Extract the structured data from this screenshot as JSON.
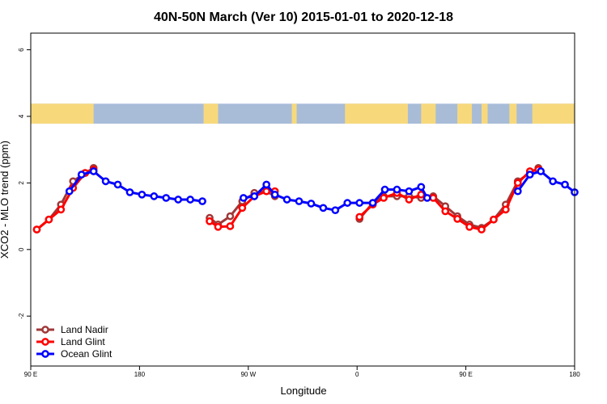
{
  "chart_data": {
    "type": "line",
    "title": "40N-50N March (Ver 10)   2015-01-01 to 2020-12-18",
    "xlabel": "Longitude",
    "ylabel": "XCO2 - MLO trend (ppm)",
    "xlim": [
      90,
      540
    ],
    "ylim": [
      -3.5,
      6.5
    ],
    "x_ticks": [
      {
        "value": 90,
        "label": "90 E"
      },
      {
        "value": 180,
        "label": "180"
      },
      {
        "value": 270,
        "label": "90 W"
      },
      {
        "value": 360,
        "label": "0"
      },
      {
        "value": 450,
        "label": "90 E"
      },
      {
        "value": 540,
        "label": "180"
      }
    ],
    "y_ticks": [
      {
        "value": -2,
        "label": "-2"
      },
      {
        "value": 0,
        "label": "0"
      },
      {
        "value": 2,
        "label": "2"
      },
      {
        "value": 4,
        "label": "4"
      },
      {
        "value": 6,
        "label": "6"
      }
    ],
    "map_strip": {
      "y_range": [
        3.78,
        4.38
      ],
      "ocean_color": "#a8bcd8",
      "land_color": "#f7d97c",
      "land_x_ranges": [
        [
          90,
          142
        ],
        [
          233,
          245
        ],
        [
          306,
          310
        ],
        [
          350,
          402
        ],
        [
          413,
          425
        ],
        [
          443,
          455
        ],
        [
          463,
          468
        ],
        [
          486,
          492
        ],
        [
          505,
          540
        ]
      ]
    },
    "legend_position": "bottom-left",
    "series": [
      {
        "name": "Land Nadir",
        "color": "#a03838",
        "segments": [
          [
            [
              95,
              0.6
            ],
            [
              105,
              0.9
            ],
            [
              115,
              1.35
            ],
            [
              125,
              2.05
            ],
            [
              135,
              2.3
            ],
            [
              142,
              2.45
            ]
          ],
          [
            [
              238,
              0.95
            ],
            [
              245,
              0.75
            ],
            [
              255,
              1.0
            ],
            [
              265,
              1.45
            ],
            [
              275,
              1.7
            ],
            [
              285,
              1.75
            ],
            [
              292,
              1.6
            ]
          ],
          [
            [
              362,
              0.92
            ],
            [
              373,
              1.4
            ],
            [
              382,
              1.6
            ],
            [
              393,
              1.6
            ],
            [
              403,
              1.6
            ],
            [
              413,
              1.55
            ],
            [
              423,
              1.6
            ],
            [
              433,
              1.3
            ],
            [
              443,
              1.0
            ],
            [
              453,
              0.75
            ],
            [
              463,
              0.65
            ],
            [
              473,
              0.9
            ],
            [
              483,
              1.35
            ],
            [
              493,
              2.05
            ],
            [
              503,
              2.3
            ],
            [
              510,
              2.45
            ]
          ]
        ]
      },
      {
        "name": "Land Glint",
        "color": "#ff0000",
        "segments": [
          [
            [
              95,
              0.6
            ],
            [
              105,
              0.9
            ],
            [
              115,
              1.2
            ],
            [
              125,
              1.85
            ],
            [
              135,
              2.3
            ],
            [
              142,
              2.4
            ]
          ],
          [
            [
              238,
              0.85
            ],
            [
              245,
              0.68
            ],
            [
              255,
              0.7
            ],
            [
              265,
              1.25
            ],
            [
              275,
              1.6
            ],
            [
              285,
              1.75
            ],
            [
              292,
              1.75
            ]
          ],
          [
            [
              362,
              0.98
            ],
            [
              373,
              1.35
            ],
            [
              382,
              1.55
            ],
            [
              393,
              1.7
            ],
            [
              403,
              1.5
            ],
            [
              413,
              1.65
            ],
            [
              423,
              1.55
            ],
            [
              433,
              1.15
            ],
            [
              443,
              0.92
            ],
            [
              453,
              0.68
            ],
            [
              463,
              0.6
            ],
            [
              473,
              0.9
            ],
            [
              483,
              1.2
            ],
            [
              493,
              2.0
            ],
            [
              503,
              2.35
            ],
            [
              510,
              2.4
            ]
          ]
        ]
      },
      {
        "name": "Ocean Glint",
        "color": "#0000ff",
        "segments": [
          [
            [
              122,
              1.75
            ],
            [
              132,
              2.25
            ],
            [
              142,
              2.35
            ],
            [
              152,
              2.05
            ],
            [
              162,
              1.95
            ],
            [
              172,
              1.72
            ],
            [
              182,
              1.65
            ],
            [
              192,
              1.6
            ],
            [
              202,
              1.55
            ],
            [
              212,
              1.5
            ],
            [
              222,
              1.5
            ],
            [
              232,
              1.45
            ]
          ],
          [
            [
              266,
              1.55
            ],
            [
              275,
              1.6
            ],
            [
              285,
              1.95
            ],
            [
              292,
              1.65
            ],
            [
              302,
              1.5
            ],
            [
              312,
              1.45
            ],
            [
              322,
              1.38
            ],
            [
              332,
              1.25
            ],
            [
              342,
              1.18
            ],
            [
              352,
              1.4
            ],
            [
              362,
              1.4
            ],
            [
              373,
              1.4
            ],
            [
              383,
              1.8
            ],
            [
              393,
              1.8
            ],
            [
              403,
              1.75
            ],
            [
              413,
              1.88
            ],
            [
              418,
              1.55
            ]
          ],
          [
            [
              493,
              1.75
            ],
            [
              503,
              2.25
            ],
            [
              512,
              2.35
            ],
            [
              522,
              2.05
            ],
            [
              532,
              1.95
            ],
            [
              540,
              1.72
            ]
          ]
        ]
      }
    ]
  }
}
